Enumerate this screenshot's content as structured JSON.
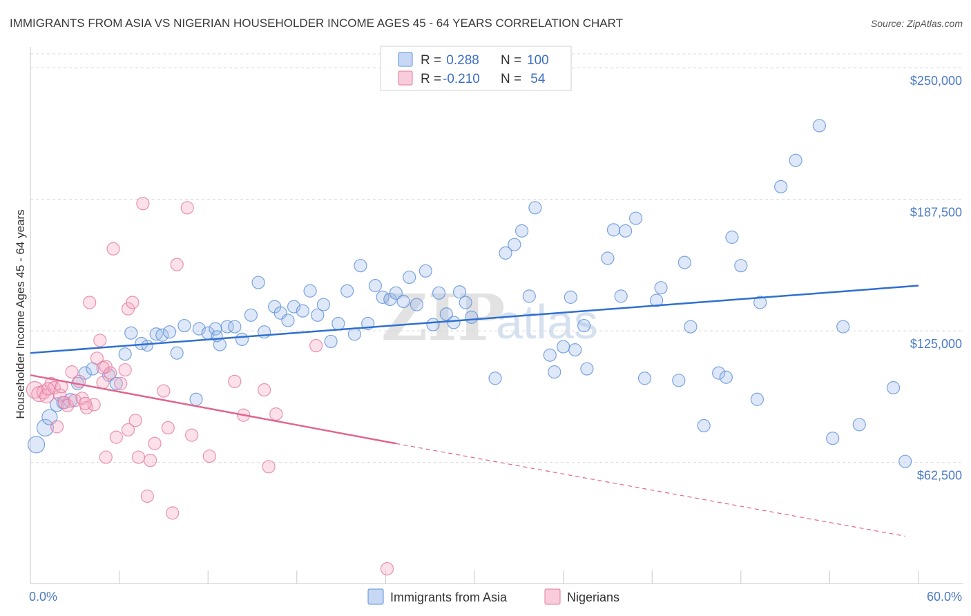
{
  "colors": {
    "asia": "#5b8fd8",
    "asia_fill": "rgba(160,190,235,0.35)",
    "nigerian": "#e2799c",
    "nigerian_fill": "rgba(245,170,195,0.35)",
    "axis_text": "#4a7ac8",
    "grid": "#d8d8d8"
  },
  "chart_data": {
    "type": "scatter",
    "title": "IMMIGRANTS FROM ASIA VS NIGERIAN HOUSEHOLDER INCOME AGES 45 - 64 YEARS CORRELATION CHART",
    "source": "Source: ZipAtlas.com",
    "xlabel": "",
    "ylabel": "Householder Income Ages 45 - 64 years",
    "xlim": [
      0,
      60
    ],
    "ylim": [
      5000,
      262500
    ],
    "x_tick_labels": {
      "left": "0.0%",
      "right": "60.0%"
    },
    "y_ticks": [
      {
        "value": 250000,
        "label": "$250,000"
      },
      {
        "value": 187500,
        "label": "$187,500"
      },
      {
        "value": 125000,
        "label": "$125,000"
      },
      {
        "value": 62500,
        "label": "$62,500"
      }
    ],
    "grid": true,
    "legend": {
      "position": "top-center",
      "rows": [
        {
          "r_label": "R = ",
          "r_value": " 0.288",
          "n_label": "N = ",
          "n_value": "100"
        },
        {
          "r_label": "R = ",
          "r_value": "-0.210",
          "n_label": "N = ",
          "n_value": " 54"
        }
      ]
    },
    "bottom_legend": [
      "Immigrants from Asia",
      "Nigerians"
    ],
    "watermark": {
      "part1": "ZIP",
      "part2": "atlas"
    },
    "series": [
      {
        "name": "Immigrants from Asia",
        "trend": {
          "x0": 0,
          "y0": 114500,
          "x1": 60,
          "y1": 146500
        },
        "points": [
          [
            0.4,
            71000,
            12
          ],
          [
            1.0,
            79000,
            12
          ],
          [
            1.3,
            84000,
            11
          ],
          [
            1.8,
            90000,
            10
          ],
          [
            2.2,
            91000,
            9
          ],
          [
            2.7,
            92000,
            10
          ],
          [
            3.2,
            100000,
            9
          ],
          [
            3.7,
            105000,
            9
          ],
          [
            4.2,
            107000,
            9
          ],
          [
            5.3,
            104000,
            9
          ],
          [
            5.8,
            100000,
            9
          ],
          [
            6.4,
            114000,
            9
          ],
          [
            6.8,
            124000,
            9
          ],
          [
            7.5,
            119000,
            9
          ],
          [
            7.9,
            118000,
            8
          ],
          [
            8.5,
            123500,
            9
          ],
          [
            8.9,
            123000,
            9
          ],
          [
            9.4,
            124500,
            9
          ],
          [
            9.9,
            114500,
            9
          ],
          [
            10.4,
            127500,
            9
          ],
          [
            11.2,
            92500,
            9
          ],
          [
            11.4,
            126000,
            9
          ],
          [
            12.0,
            124000,
            9
          ],
          [
            12.5,
            126000,
            9
          ],
          [
            12.8,
            118500,
            9
          ],
          [
            13.3,
            127000,
            9
          ],
          [
            13.8,
            127000,
            9
          ],
          [
            14.3,
            121000,
            9
          ],
          [
            14.9,
            132500,
            9
          ],
          [
            15.4,
            148000,
            9
          ],
          [
            15.8,
            124500,
            9
          ],
          [
            16.5,
            136500,
            9
          ],
          [
            16.9,
            133500,
            9
          ],
          [
            17.4,
            130000,
            9
          ],
          [
            17.8,
            136500,
            9
          ],
          [
            18.4,
            134500,
            9
          ],
          [
            18.9,
            144000,
            9
          ],
          [
            19.4,
            132500,
            9
          ],
          [
            19.8,
            137500,
            9
          ],
          [
            20.3,
            120000,
            9
          ],
          [
            20.8,
            128500,
            9
          ],
          [
            21.4,
            144000,
            9
          ],
          [
            21.9,
            123500,
            9
          ],
          [
            22.3,
            156000,
            9
          ],
          [
            22.8,
            128500,
            9
          ],
          [
            23.3,
            146500,
            9
          ],
          [
            23.8,
            141000,
            9
          ],
          [
            24.3,
            140000,
            9
          ],
          [
            24.7,
            143000,
            9
          ],
          [
            25.2,
            139000,
            9
          ],
          [
            25.6,
            150500,
            9
          ],
          [
            26.1,
            137500,
            9
          ],
          [
            26.7,
            153500,
            9
          ],
          [
            27.2,
            128000,
            9
          ],
          [
            27.6,
            143000,
            9
          ],
          [
            28.1,
            133000,
            9
          ],
          [
            28.6,
            129000,
            9
          ],
          [
            29.0,
            143500,
            9
          ],
          [
            29.4,
            138500,
            9
          ],
          [
            29.8,
            131500,
            9
          ],
          [
            31.4,
            102500,
            9
          ],
          [
            32.1,
            162000,
            9
          ],
          [
            32.7,
            166000,
            9
          ],
          [
            33.2,
            172500,
            9
          ],
          [
            33.7,
            141500,
            9
          ],
          [
            34.1,
            183500,
            9
          ],
          [
            35.1,
            113500,
            9
          ],
          [
            35.4,
            105500,
            9
          ],
          [
            36.0,
            117500,
            9
          ],
          [
            36.5,
            141000,
            9
          ],
          [
            36.8,
            116000,
            9
          ],
          [
            37.4,
            127500,
            9
          ],
          [
            37.6,
            107000,
            9
          ],
          [
            39.0,
            159500,
            9
          ],
          [
            39.4,
            173000,
            9
          ],
          [
            39.9,
            141500,
            9
          ],
          [
            40.2,
            172500,
            9
          ],
          [
            40.9,
            178500,
            9
          ],
          [
            41.5,
            102500,
            9
          ],
          [
            42.3,
            139500,
            9
          ],
          [
            42.6,
            145500,
            9
          ],
          [
            43.8,
            101500,
            9
          ],
          [
            44.2,
            157500,
            9
          ],
          [
            44.6,
            127000,
            9
          ],
          [
            45.5,
            80000,
            9
          ],
          [
            46.5,
            105000,
            9
          ],
          [
            47.0,
            103000,
            9
          ],
          [
            47.4,
            169500,
            9
          ],
          [
            48.0,
            156000,
            9
          ],
          [
            49.1,
            92500,
            9
          ],
          [
            49.3,
            138500,
            9
          ],
          [
            50.7,
            193500,
            9
          ],
          [
            51.7,
            206000,
            9
          ],
          [
            53.3,
            222500,
            9
          ],
          [
            54.2,
            74000,
            9
          ],
          [
            54.9,
            127000,
            9
          ],
          [
            56.0,
            80500,
            9
          ],
          [
            58.3,
            98000,
            9
          ],
          [
            59.1,
            63000,
            9
          ],
          [
            12.6,
            122500,
            8
          ]
        ]
      },
      {
        "name": "Nigerians",
        "trend": {
          "x0": 0,
          "y0": 104000,
          "x1": 24.7,
          "y1": 71500
        },
        "trend_dashed": {
          "x0": 24.7,
          "y0": 71500,
          "x1": 59.1,
          "y1": 27500
        },
        "points": [
          [
            0.3,
            97000,
            12
          ],
          [
            0.6,
            95000,
            11
          ],
          [
            0.9,
            96000,
            10
          ],
          [
            1.1,
            94000,
            10
          ],
          [
            1.4,
            100000,
            9
          ],
          [
            1.6,
            98000,
            9
          ],
          [
            1.8,
            79500,
            9
          ],
          [
            2.0,
            94500,
            9
          ],
          [
            2.3,
            91000,
            9
          ],
          [
            2.5,
            89500,
            9
          ],
          [
            2.8,
            105500,
            9
          ],
          [
            3.0,
            92000,
            9
          ],
          [
            3.3,
            101000,
            9
          ],
          [
            3.5,
            93000,
            9
          ],
          [
            3.8,
            88500,
            9
          ],
          [
            4.0,
            138500,
            9
          ],
          [
            4.3,
            90000,
            9
          ],
          [
            4.5,
            112000,
            9
          ],
          [
            4.7,
            120500,
            9
          ],
          [
            4.9,
            100500,
            9
          ],
          [
            5.1,
            108000,
            9
          ],
          [
            5.4,
            105000,
            9
          ],
          [
            5.6,
            164000,
            9
          ],
          [
            5.8,
            74500,
            9
          ],
          [
            6.1,
            100000,
            9
          ],
          [
            6.4,
            106500,
            9
          ],
          [
            6.6,
            135500,
            9
          ],
          [
            6.9,
            138500,
            9
          ],
          [
            7.1,
            82500,
            9
          ],
          [
            7.3,
            65000,
            9
          ],
          [
            7.6,
            185500,
            9
          ],
          [
            7.9,
            46500,
            9
          ],
          [
            8.1,
            63500,
            9
          ],
          [
            8.4,
            71500,
            9
          ],
          [
            9.0,
            96500,
            9
          ],
          [
            9.3,
            79000,
            9
          ],
          [
            9.6,
            38500,
            9
          ],
          [
            9.9,
            156500,
            9
          ],
          [
            10.6,
            183500,
            9
          ],
          [
            10.9,
            75500,
            9
          ],
          [
            12.1,
            65500,
            9
          ],
          [
            13.8,
            101000,
            9
          ],
          [
            14.4,
            85000,
            9
          ],
          [
            15.8,
            97000,
            9
          ],
          [
            16.6,
            85500,
            9
          ],
          [
            19.3,
            118000,
            9
          ],
          [
            24.1,
            12000,
            9
          ],
          [
            16.1,
            60500,
            9
          ],
          [
            5.1,
            65000,
            9
          ],
          [
            6.6,
            78000,
            9
          ],
          [
            3.7,
            90500,
            9
          ],
          [
            2.1,
            98500,
            9
          ],
          [
            4.9,
            107500,
            9
          ],
          [
            1.2,
            97500,
            9
          ]
        ]
      }
    ]
  }
}
